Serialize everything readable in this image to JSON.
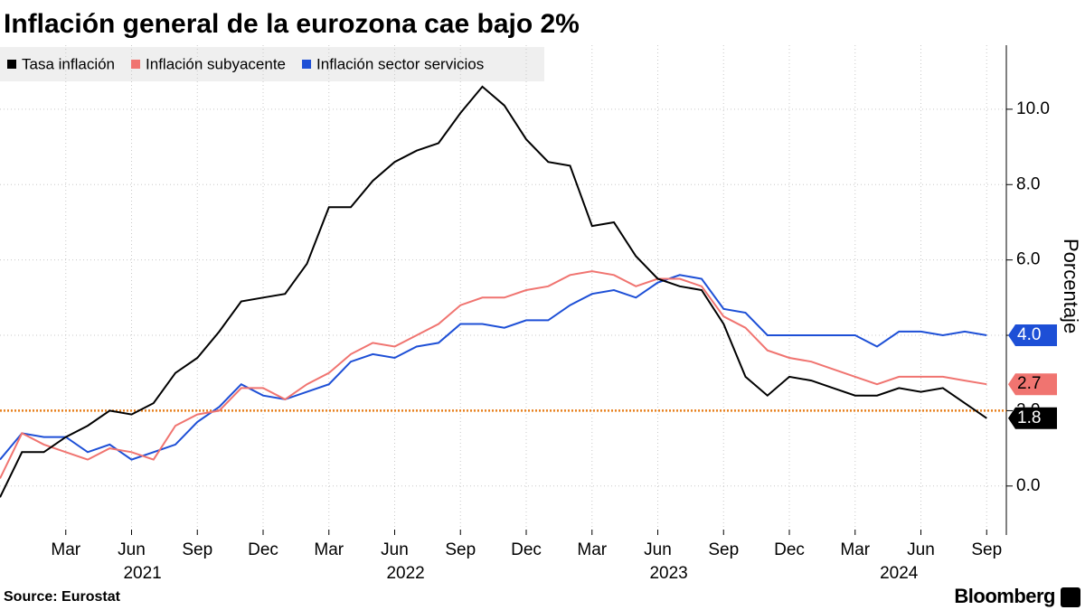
{
  "chart_data": {
    "type": "line",
    "title": "Inflación general de la eurozona cae bajo 2%",
    "source": "Source: Eurostat",
    "brand": "Bloomberg",
    "y_axis_label": "Porcentaje",
    "categories": [
      null,
      null,
      null,
      "Mar",
      null,
      null,
      "Jun",
      null,
      null,
      "Sep",
      null,
      null,
      "Dec",
      null,
      null,
      "Mar",
      null,
      null,
      "Jun",
      null,
      null,
      "Sep",
      null,
      null,
      "Dec",
      null,
      null,
      "Mar",
      null,
      null,
      "Jun",
      null,
      null,
      "Sep",
      null,
      null,
      "Dec",
      null,
      null,
      "Mar",
      null,
      null,
      "Jun",
      null,
      null,
      "Sep"
    ],
    "x_groups": [
      {
        "label": "2021",
        "start": 1,
        "end": 12
      },
      {
        "label": "2022",
        "start": 13,
        "end": 24
      },
      {
        "label": "2023",
        "start": 25,
        "end": 36
      },
      {
        "label": "2024",
        "start": 37,
        "end": 45
      }
    ],
    "series": [
      {
        "name": "Tasa inflación",
        "color": "#000000",
        "end_label": "1.8",
        "values": [
          -0.3,
          0.9,
          0.9,
          1.3,
          1.6,
          2.0,
          1.9,
          2.2,
          3.0,
          3.4,
          4.1,
          4.9,
          5.0,
          5.1,
          5.9,
          7.4,
          7.4,
          8.1,
          8.6,
          8.9,
          9.1,
          9.9,
          10.6,
          10.1,
          9.2,
          8.6,
          8.5,
          6.9,
          7.0,
          6.1,
          5.5,
          5.3,
          5.2,
          4.3,
          2.9,
          2.4,
          2.9,
          2.8,
          2.6,
          2.4,
          2.4,
          2.6,
          2.5,
          2.6,
          2.2,
          1.8
        ]
      },
      {
        "name": "Inflación subyacente",
        "color": "#f07470",
        "end_label": "2.7",
        "values": [
          0.2,
          1.4,
          1.1,
          0.9,
          0.7,
          1.0,
          0.9,
          0.7,
          1.6,
          1.9,
          2.0,
          2.6,
          2.6,
          2.3,
          2.7,
          3.0,
          3.5,
          3.8,
          3.7,
          4.0,
          4.3,
          4.8,
          5.0,
          5.0,
          5.2,
          5.3,
          5.6,
          5.7,
          5.6,
          5.3,
          5.5,
          5.5,
          5.3,
          4.5,
          4.2,
          3.6,
          3.4,
          3.3,
          3.1,
          2.9,
          2.7,
          2.9,
          2.9,
          2.9,
          2.8,
          2.7
        ]
      },
      {
        "name": "Inflación sector servicios",
        "color": "#1d4fd6",
        "end_label": "4.0",
        "values": [
          0.7,
          1.4,
          1.3,
          1.3,
          0.9,
          1.1,
          0.7,
          0.9,
          1.1,
          1.7,
          2.1,
          2.7,
          2.4,
          2.3,
          2.5,
          2.7,
          3.3,
          3.5,
          3.4,
          3.7,
          3.8,
          4.3,
          4.3,
          4.2,
          4.4,
          4.4,
          4.8,
          5.1,
          5.2,
          5.0,
          5.4,
          5.6,
          5.5,
          4.7,
          4.6,
          4.0,
          4.0,
          4.0,
          4.0,
          4.0,
          3.7,
          4.1,
          4.1,
          4.0,
          4.1,
          4.0
        ]
      }
    ],
    "ylim": [
      -1.3,
      11.7
    ],
    "yticks": [
      {
        "value": 0,
        "label": "0.0"
      },
      {
        "value": 2,
        "label": "2.0"
      },
      {
        "value": 4,
        "label": "4.0"
      },
      {
        "value": 6,
        "label": "6.0"
      },
      {
        "value": 8,
        "label": "8.0"
      },
      {
        "value": 10,
        "label": "10.0"
      }
    ],
    "reference_line": {
      "value": 2,
      "color": "#e8801e"
    },
    "grid": true,
    "legend": "top-left"
  }
}
